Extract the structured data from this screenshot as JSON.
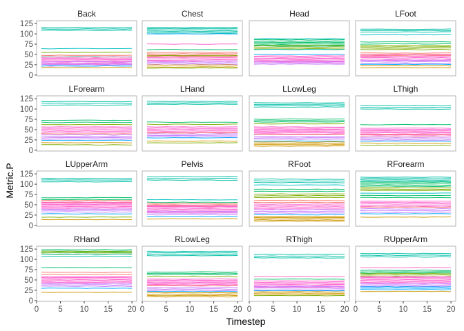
{
  "chart_data": {
    "type": "line",
    "facet_wrap": true,
    "ncol": 4,
    "xlabel": "Timestep",
    "ylabel": "Metric.P",
    "xlim": [
      0,
      21
    ],
    "ylim": [
      -2,
      132
    ],
    "x_ticks": [
      0,
      5,
      10,
      15,
      20
    ],
    "y_ticks": [
      0,
      25,
      50,
      75,
      100,
      125
    ],
    "x_tick_labels": [
      "0",
      "5",
      "10",
      "15",
      "20"
    ],
    "y_tick_labels": [
      "0",
      "25",
      "50",
      "75",
      "100",
      "125"
    ],
    "timesteps": [
      1,
      20
    ],
    "legend": "none",
    "series_palette": [
      "#F8766D",
      "#CD9600",
      "#7CAE00",
      "#00BE67",
      "#00BFC4",
      "#00A9FF",
      "#C77CFF",
      "#FF61CC"
    ],
    "facets": [
      {
        "name": "Back",
        "series": [
          {
            "color": "#00BFA6",
            "level": 112,
            "width": 4
          },
          {
            "color": "#00BFC4",
            "level": 64,
            "width": 1
          },
          {
            "color": "#7CAE00",
            "level": 55,
            "width": 1.5
          },
          {
            "color": "#F8766D",
            "level": 48,
            "width": 2
          },
          {
            "color": "#00BE67",
            "level": 44,
            "width": 2
          },
          {
            "color": "#FF61CC",
            "level": 35,
            "width": 10
          },
          {
            "color": "#C77CFF",
            "level": 27,
            "width": 6
          },
          {
            "color": "#00A9FF",
            "level": 22,
            "width": 2
          },
          {
            "color": "#CD9600",
            "level": 18,
            "width": 1
          }
        ]
      },
      {
        "name": "Chest",
        "series": [
          {
            "color": "#00BFA6",
            "level": 108,
            "width": 9
          },
          {
            "color": "#00A9FF",
            "level": 100,
            "width": 1
          },
          {
            "color": "#FF61CC",
            "level": 75,
            "width": 2
          },
          {
            "color": "#00BE67",
            "level": 62,
            "width": 1.5
          },
          {
            "color": "#F8766D",
            "level": 50,
            "width": 6
          },
          {
            "color": "#7CAE00",
            "level": 47,
            "width": 2
          },
          {
            "color": "#FF61CC",
            "level": 38,
            "width": 6
          },
          {
            "color": "#C77CFF",
            "level": 30,
            "width": 4
          },
          {
            "color": "#CD9600",
            "level": 22,
            "width": 3
          },
          {
            "color": "#7CAE00",
            "level": 17,
            "width": 2
          }
        ]
      },
      {
        "name": "Head",
        "series": [
          {
            "color": "#00BFC4",
            "level": 88,
            "width": 1.5
          },
          {
            "color": "#00BE67",
            "level": 78,
            "width": 9
          },
          {
            "color": "#7CAE00",
            "level": 68,
            "width": 5
          },
          {
            "color": "#00BFA6",
            "level": 62,
            "width": 1.5
          },
          {
            "color": "#00A9FF",
            "level": 50,
            "width": 2
          },
          {
            "color": "#FF61CC",
            "level": 38,
            "width": 10
          },
          {
            "color": "#C77CFF",
            "level": 30,
            "width": 4
          }
        ]
      },
      {
        "name": "LFoot",
        "series": [
          {
            "color": "#00BFA6",
            "level": 108,
            "width": 4
          },
          {
            "color": "#00BFC4",
            "level": 98,
            "width": 1.5
          },
          {
            "color": "#00BE67",
            "level": 78,
            "width": 3
          },
          {
            "color": "#7CAE00",
            "level": 67,
            "width": 6
          },
          {
            "color": "#F8766D",
            "level": 50,
            "width": 4
          },
          {
            "color": "#FF61CC",
            "level": 42,
            "width": 8
          },
          {
            "color": "#C77CFF",
            "level": 32,
            "width": 5
          },
          {
            "color": "#00A9FF",
            "level": 26,
            "width": 2
          },
          {
            "color": "#CD9600",
            "level": 20,
            "width": 3
          }
        ]
      },
      {
        "name": "LForearm",
        "series": [
          {
            "color": "#00BFA6",
            "level": 114,
            "width": 5
          },
          {
            "color": "#00BE67",
            "level": 70,
            "width": 3
          },
          {
            "color": "#7CAE00",
            "level": 62,
            "width": 2
          },
          {
            "color": "#FF61CC",
            "level": 50,
            "width": 8
          },
          {
            "color": "#F8766D",
            "level": 40,
            "width": 2
          },
          {
            "color": "#C77CFF",
            "level": 32,
            "width": 6
          },
          {
            "color": "#00A9FF",
            "level": 24,
            "width": 2
          },
          {
            "color": "#CD9600",
            "level": 18,
            "width": 2
          },
          {
            "color": "#7CAE00",
            "level": 13,
            "width": 1.5
          }
        ]
      },
      {
        "name": "LHand",
        "series": [
          {
            "color": "#00BFA6",
            "level": 115,
            "width": 4
          },
          {
            "color": "#00BE67",
            "level": 68,
            "width": 2
          },
          {
            "color": "#7CAE00",
            "level": 63,
            "width": 2
          },
          {
            "color": "#FF61CC",
            "level": 50,
            "width": 8
          },
          {
            "color": "#F8766D",
            "level": 42,
            "width": 2
          },
          {
            "color": "#C77CFF",
            "level": 36,
            "width": 4
          },
          {
            "color": "#00A9FF",
            "level": 30,
            "width": 2
          },
          {
            "color": "#CD9600",
            "level": 22,
            "width": 2
          },
          {
            "color": "#7CAE00",
            "level": 18,
            "width": 1.5
          }
        ]
      },
      {
        "name": "LLowLeg",
        "series": [
          {
            "color": "#00BFA6",
            "level": 110,
            "width": 6
          },
          {
            "color": "#00BE67",
            "level": 72,
            "width": 4
          },
          {
            "color": "#7CAE00",
            "level": 64,
            "width": 2
          },
          {
            "color": "#FF61CC",
            "level": 48,
            "width": 10
          },
          {
            "color": "#F8766D",
            "level": 38,
            "width": 2
          },
          {
            "color": "#C77CFF",
            "level": 30,
            "width": 4
          },
          {
            "color": "#00A9FF",
            "level": 22,
            "width": 2
          },
          {
            "color": "#CD9600",
            "level": 15,
            "width": 6
          }
        ]
      },
      {
        "name": "LThigh",
        "series": [
          {
            "color": "#00BFA6",
            "level": 104,
            "width": 5
          },
          {
            "color": "#00BE67",
            "level": 62,
            "width": 2
          },
          {
            "color": "#FF61CC",
            "level": 45,
            "width": 10
          },
          {
            "color": "#F8766D",
            "level": 35,
            "width": 3
          },
          {
            "color": "#C77CFF",
            "level": 28,
            "width": 4
          },
          {
            "color": "#00A9FF",
            "level": 22,
            "width": 2
          },
          {
            "color": "#CD9600",
            "level": 17,
            "width": 2
          },
          {
            "color": "#7CAE00",
            "level": 12,
            "width": 1.5
          }
        ]
      },
      {
        "name": "LUpperArm",
        "series": [
          {
            "color": "#00BFA6",
            "level": 110,
            "width": 5
          },
          {
            "color": "#00BE67",
            "level": 65,
            "width": 3
          },
          {
            "color": "#F8766D",
            "level": 58,
            "width": 3
          },
          {
            "color": "#FF61CC",
            "level": 48,
            "width": 10
          },
          {
            "color": "#C77CFF",
            "level": 36,
            "width": 4
          },
          {
            "color": "#00A9FF",
            "level": 28,
            "width": 2
          },
          {
            "color": "#7CAE00",
            "level": 20,
            "width": 2
          },
          {
            "color": "#CD9600",
            "level": 14,
            "width": 1.5
          }
        ]
      },
      {
        "name": "Pelvis",
        "series": [
          {
            "color": "#00BFA6",
            "level": 114,
            "width": 5
          },
          {
            "color": "#00BFC4",
            "level": 62,
            "width": 1.5
          },
          {
            "color": "#00BE67",
            "level": 56,
            "width": 2
          },
          {
            "color": "#F8766D",
            "level": 50,
            "width": 4
          },
          {
            "color": "#FF61CC",
            "level": 40,
            "width": 10
          },
          {
            "color": "#C77CFF",
            "level": 30,
            "width": 5
          },
          {
            "color": "#00A9FF",
            "level": 22,
            "width": 2
          },
          {
            "color": "#CD9600",
            "level": 16,
            "width": 2
          }
        ]
      },
      {
        "name": "RFoot",
        "series": [
          {
            "color": "#00BFA6",
            "level": 108,
            "width": 5
          },
          {
            "color": "#00BFC4",
            "level": 98,
            "width": 1.5
          },
          {
            "color": "#00BE67",
            "level": 85,
            "width": 3
          },
          {
            "color": "#7CAE00",
            "level": 72,
            "width": 5
          },
          {
            "color": "#F8766D",
            "level": 58,
            "width": 3
          },
          {
            "color": "#FF61CC",
            "level": 45,
            "width": 8
          },
          {
            "color": "#C77CFF",
            "level": 34,
            "width": 5
          },
          {
            "color": "#00A9FF",
            "level": 26,
            "width": 2
          },
          {
            "color": "#CD9600",
            "level": 16,
            "width": 7
          }
        ]
      },
      {
        "name": "RForearm",
        "series": [
          {
            "color": "#00BFA6",
            "level": 112,
            "width": 6
          },
          {
            "color": "#00BE67",
            "level": 100,
            "width": 6
          },
          {
            "color": "#7CAE00",
            "level": 88,
            "width": 4
          },
          {
            "color": "#00BFC4",
            "level": 78,
            "width": 2
          },
          {
            "color": "#00BE67",
            "level": 70,
            "width": 3
          },
          {
            "color": "#FF61CC",
            "level": 52,
            "width": 8
          },
          {
            "color": "#F8766D",
            "level": 44,
            "width": 2
          },
          {
            "color": "#C77CFF",
            "level": 36,
            "width": 5
          },
          {
            "color": "#00A9FF",
            "level": 28,
            "width": 2
          },
          {
            "color": "#CD9600",
            "level": 20,
            "width": 2
          }
        ]
      },
      {
        "name": "RHand",
        "series": [
          {
            "color": "#00BE67",
            "level": 120,
            "width": 4
          },
          {
            "color": "#7CAE00",
            "level": 116,
            "width": 4
          },
          {
            "color": "#00BFA6",
            "level": 110,
            "width": 3
          },
          {
            "color": "#00BE67",
            "level": 80,
            "width": 2
          },
          {
            "color": "#F8766D",
            "level": 66,
            "width": 3
          },
          {
            "color": "#FF61CC",
            "level": 50,
            "width": 10
          },
          {
            "color": "#C77CFF",
            "level": 38,
            "width": 4
          },
          {
            "color": "#00A9FF",
            "level": 30,
            "width": 2
          },
          {
            "color": "#CD9600",
            "level": 20,
            "width": 2
          }
        ]
      },
      {
        "name": "RLowLeg",
        "series": [
          {
            "color": "#00BFA6",
            "level": 114,
            "width": 6
          },
          {
            "color": "#00BE67",
            "level": 66,
            "width": 4
          },
          {
            "color": "#7CAE00",
            "level": 58,
            "width": 2
          },
          {
            "color": "#FF61CC",
            "level": 44,
            "width": 10
          },
          {
            "color": "#F8766D",
            "level": 36,
            "width": 2
          },
          {
            "color": "#C77CFF",
            "level": 28,
            "width": 4
          },
          {
            "color": "#00A9FF",
            "level": 22,
            "width": 2
          },
          {
            "color": "#CD9600",
            "level": 14,
            "width": 6
          }
        ]
      },
      {
        "name": "RThigh",
        "series": [
          {
            "color": "#00BFA6",
            "level": 108,
            "width": 5
          },
          {
            "color": "#FF61CC",
            "level": 58,
            "width": 2
          },
          {
            "color": "#00BE67",
            "level": 52,
            "width": 2
          },
          {
            "color": "#FF61CC",
            "level": 40,
            "width": 9
          },
          {
            "color": "#C77CFF",
            "level": 30,
            "width": 5
          },
          {
            "color": "#00A9FF",
            "level": 24,
            "width": 2
          },
          {
            "color": "#CD9600",
            "level": 18,
            "width": 4
          },
          {
            "color": "#7CAE00",
            "level": 12,
            "width": 1.5
          }
        ]
      },
      {
        "name": "RUpperArm",
        "series": [
          {
            "color": "#00BFA6",
            "level": 110,
            "width": 5
          },
          {
            "color": "#FF61CC",
            "level": 80,
            "width": 2
          },
          {
            "color": "#00BE67",
            "level": 70,
            "width": 4
          },
          {
            "color": "#7CAE00",
            "level": 62,
            "width": 4
          },
          {
            "color": "#FF61CC",
            "level": 50,
            "width": 10
          },
          {
            "color": "#C77CFF",
            "level": 38,
            "width": 4
          },
          {
            "color": "#00A9FF",
            "level": 30,
            "width": 4
          },
          {
            "color": "#CD9600",
            "level": 22,
            "width": 2
          }
        ]
      }
    ]
  },
  "colors": {
    "panel_border": "#b3b3b3",
    "panel_fill": "#ffffff",
    "strip_fill": "#ffffff"
  }
}
